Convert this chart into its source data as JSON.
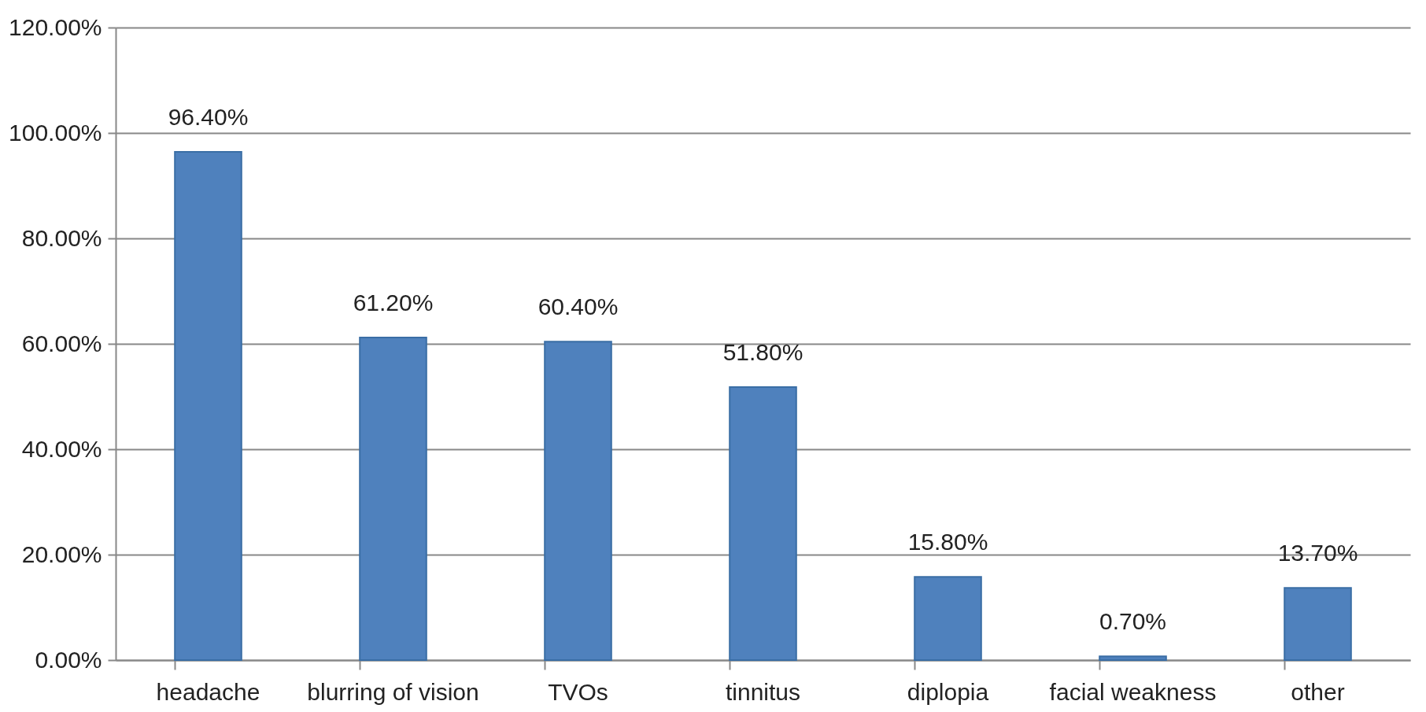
{
  "chart_data": {
    "type": "bar",
    "categories": [
      "headache",
      "blurring of vision",
      "TVOs",
      "tinnitus",
      "diplopia",
      "facial weakness",
      "other"
    ],
    "values": [
      96.4,
      61.2,
      60.4,
      51.8,
      15.8,
      0.7,
      13.7
    ],
    "value_labels": [
      "96.40%",
      "61.20%",
      "60.40%",
      "51.80%",
      "15.80%",
      "0.70%",
      "13.70%"
    ],
    "color": "#4f81bd",
    "ylim": [
      0,
      120
    ],
    "yticks": [
      {
        "value": 0,
        "label": "0.00%"
      },
      {
        "value": 20,
        "label": "20.00%"
      },
      {
        "value": 40,
        "label": "40.00%"
      },
      {
        "value": 60,
        "label": "60.00%"
      },
      {
        "value": 80,
        "label": "80.00%"
      },
      {
        "value": 100,
        "label": "100.00%"
      },
      {
        "value": 120,
        "label": "120.00%"
      }
    ],
    "grid": "y"
  }
}
